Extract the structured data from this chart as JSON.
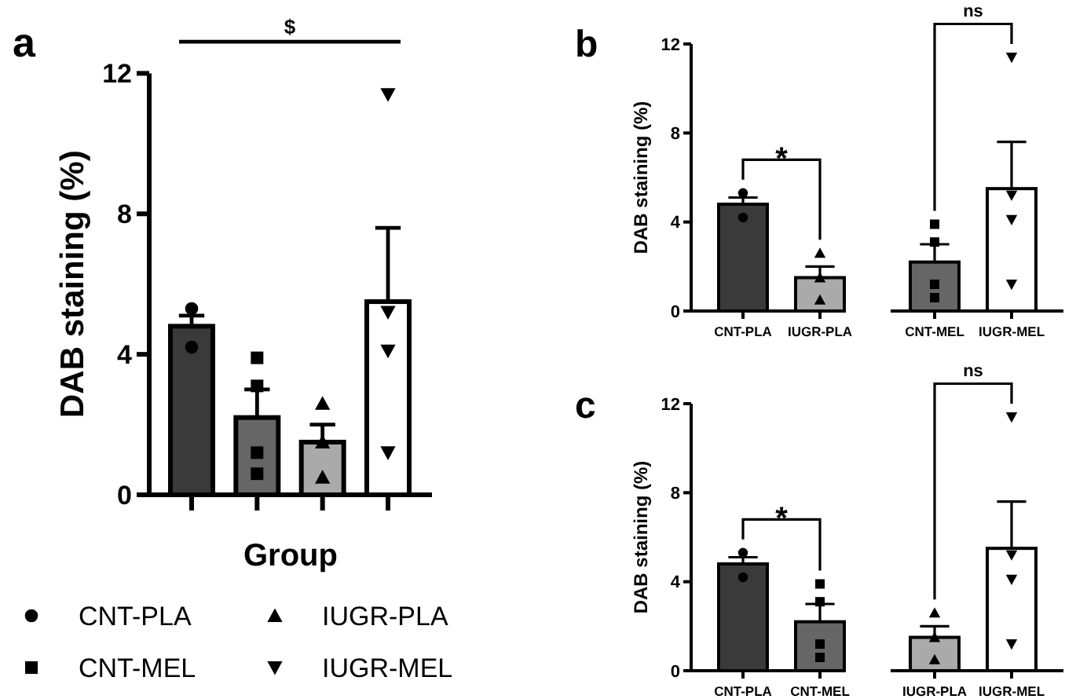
{
  "chart_data": [
    {
      "type": "bar",
      "title": "a",
      "ylabel": "DAB staining (%)",
      "xlabel": "Group",
      "categories": [
        null,
        null,
        null,
        null
      ],
      "values": [
        4.8,
        2.2,
        1.5,
        5.5
      ],
      "colors": [
        "#3a3a3a",
        "#666666",
        "#aaaaaa",
        "#ffffff"
      ],
      "errors": [
        [
          4.8,
          5.1
        ],
        [
          2.2,
          3.0
        ],
        [
          1.5,
          2.0
        ],
        [
          5.5,
          7.6
        ]
      ],
      "ylim": [
        0,
        12
      ],
      "yticks": [
        0,
        4,
        8,
        12
      ],
      "tick_labels": "y",
      "legend": "bottom",
      "annotations": [
        "$"
      ],
      "series": [
        {
          "type": "scatter",
          "name": "CNT-PLA",
          "marker": "circle",
          "color": "#000000",
          "values": [
            5.3,
            null,
            null,
            null
          ]
        },
        {
          "type": "scatter",
          "marker": "circle",
          "color": "#000000",
          "values": [
            4.2,
            null,
            null,
            null
          ]
        },
        {
          "type": "scatter",
          "name": "CNT-MEL",
          "marker": "square",
          "color": "#000000",
          "values": [
            null,
            3.9,
            null,
            null
          ]
        },
        {
          "type": "scatter",
          "marker": "square",
          "color": "#000000",
          "values": [
            null,
            3.1,
            null,
            null
          ]
        },
        {
          "type": "scatter",
          "marker": "square",
          "color": "#000000",
          "values": [
            null,
            1.2,
            null,
            null
          ]
        },
        {
          "type": "scatter",
          "marker": "square",
          "color": "#000000",
          "values": [
            null,
            0.6,
            null,
            null
          ]
        },
        {
          "type": "scatter",
          "name": "IUGR-PLA",
          "marker": "triangle",
          "color": "#000000",
          "values": [
            null,
            null,
            2.6,
            null
          ]
        },
        {
          "type": "scatter",
          "marker": "triangle",
          "color": "#000000",
          "values": [
            null,
            null,
            1.5,
            null
          ]
        },
        {
          "type": "scatter",
          "marker": "triangle",
          "color": "#000000",
          "values": [
            null,
            null,
            0.5,
            null
          ]
        },
        {
          "type": "scatter",
          "name": "IUGR-MEL",
          "marker": "triangle-down",
          "color": "#000000",
          "values": [
            null,
            null,
            null,
            11.4
          ]
        },
        {
          "type": "scatter",
          "marker": "triangle-down",
          "color": "#000000",
          "values": [
            null,
            null,
            null,
            5.2
          ]
        },
        {
          "type": "scatter",
          "marker": "triangle-down",
          "color": "#000000",
          "values": [
            null,
            null,
            null,
            4.1
          ]
        },
        {
          "type": "scatter",
          "marker": "triangle-down",
          "color": "#000000",
          "values": [
            null,
            null,
            null,
            1.2
          ]
        }
      ]
    },
    {
      "type": "bar",
      "title": "b",
      "ylabel": "DAB staining (%)",
      "categories": [
        "CNT-PLA",
        "IUGR-PLA"
      ],
      "values": [
        4.8,
        1.5
      ],
      "colors": [
        "#3a3a3a",
        "#aaaaaa"
      ],
      "errors": [
        [
          4.8,
          5.1
        ],
        [
          1.5,
          2.0
        ]
      ],
      "ylim": [
        0,
        12
      ],
      "yticks": [
        0,
        4,
        8,
        12
      ],
      "annotations": [
        "*"
      ],
      "series": [
        {
          "type": "scatter",
          "marker": "circle",
          "color": "#000000",
          "x": [
            "CNT-PLA",
            "CNT-PLA"
          ],
          "values": [
            5.3,
            4.2
          ]
        },
        {
          "type": "scatter",
          "marker": "triangle",
          "color": "#000000",
          "x": [
            "IUGR-PLA",
            "IUGR-PLA",
            "IUGR-PLA"
          ],
          "values": [
            2.6,
            1.5,
            0.5
          ]
        }
      ]
    },
    {
      "type": "bar",
      "categories": [
        "CNT-MEL",
        "IUGR-MEL"
      ],
      "values": [
        2.2,
        5.5
      ],
      "colors": [
        "#666666",
        "#ffffff"
      ],
      "errors": [
        [
          2.2,
          3.0
        ],
        [
          5.5,
          7.6
        ]
      ],
      "ylim": [
        0,
        12
      ],
      "tick_labels": "x",
      "annotations": [
        "ns"
      ],
      "series": [
        {
          "type": "scatter",
          "marker": "square",
          "color": "#000000",
          "x": [
            "CNT-MEL",
            "CNT-MEL",
            "CNT-MEL",
            "CNT-MEL"
          ],
          "values": [
            3.9,
            3.1,
            1.2,
            0.6
          ]
        },
        {
          "type": "scatter",
          "marker": "triangle-down",
          "color": "#000000",
          "x": [
            "IUGR-MEL",
            "IUGR-MEL",
            "IUGR-MEL",
            "IUGR-MEL"
          ],
          "values": [
            11.4,
            5.2,
            4.1,
            1.2
          ]
        }
      ]
    },
    {
      "type": "bar",
      "title": "c",
      "ylabel": "DAB staining (%)",
      "categories": [
        "CNT-PLA",
        "CNT-MEL"
      ],
      "values": [
        4.8,
        2.2
      ],
      "colors": [
        "#3a3a3a",
        "#666666"
      ],
      "errors": [
        [
          4.8,
          5.1
        ],
        [
          2.2,
          3.0
        ]
      ],
      "ylim": [
        0,
        12
      ],
      "yticks": [
        0,
        4,
        8,
        12
      ],
      "annotations": [
        "*"
      ],
      "series": [
        {
          "type": "scatter",
          "marker": "circle",
          "color": "#000000",
          "x": [
            "CNT-PLA",
            "CNT-PLA"
          ],
          "values": [
            5.3,
            4.2
          ]
        },
        {
          "type": "scatter",
          "marker": "square",
          "color": "#000000",
          "x": [
            "CNT-MEL",
            "CNT-MEL",
            "CNT-MEL",
            "CNT-MEL"
          ],
          "values": [
            3.9,
            3.1,
            1.2,
            0.6
          ]
        }
      ]
    },
    {
      "type": "bar",
      "categories": [
        "IUGR-PLA",
        "IUGR-MEL"
      ],
      "values": [
        1.5,
        5.5
      ],
      "colors": [
        "#aaaaaa",
        "#ffffff"
      ],
      "errors": [
        [
          1.5,
          2.0
        ],
        [
          5.5,
          7.6
        ]
      ],
      "ylim": [
        0,
        12
      ],
      "tick_labels": "x",
      "annotations": [
        "ns"
      ],
      "series": [
        {
          "type": "scatter",
          "marker": "triangle",
          "color": "#000000",
          "x": [
            "IUGR-PLA",
            "IUGR-PLA",
            "IUGR-PLA"
          ],
          "values": [
            2.6,
            1.5,
            0.5
          ]
        },
        {
          "type": "scatter",
          "marker": "triangle-down",
          "color": "#000000",
          "x": [
            "IUGR-MEL",
            "IUGR-MEL",
            "IUGR-MEL",
            "IUGR-MEL"
          ],
          "values": [
            11.4,
            5.2,
            4.1,
            1.2
          ]
        }
      ]
    }
  ]
}
